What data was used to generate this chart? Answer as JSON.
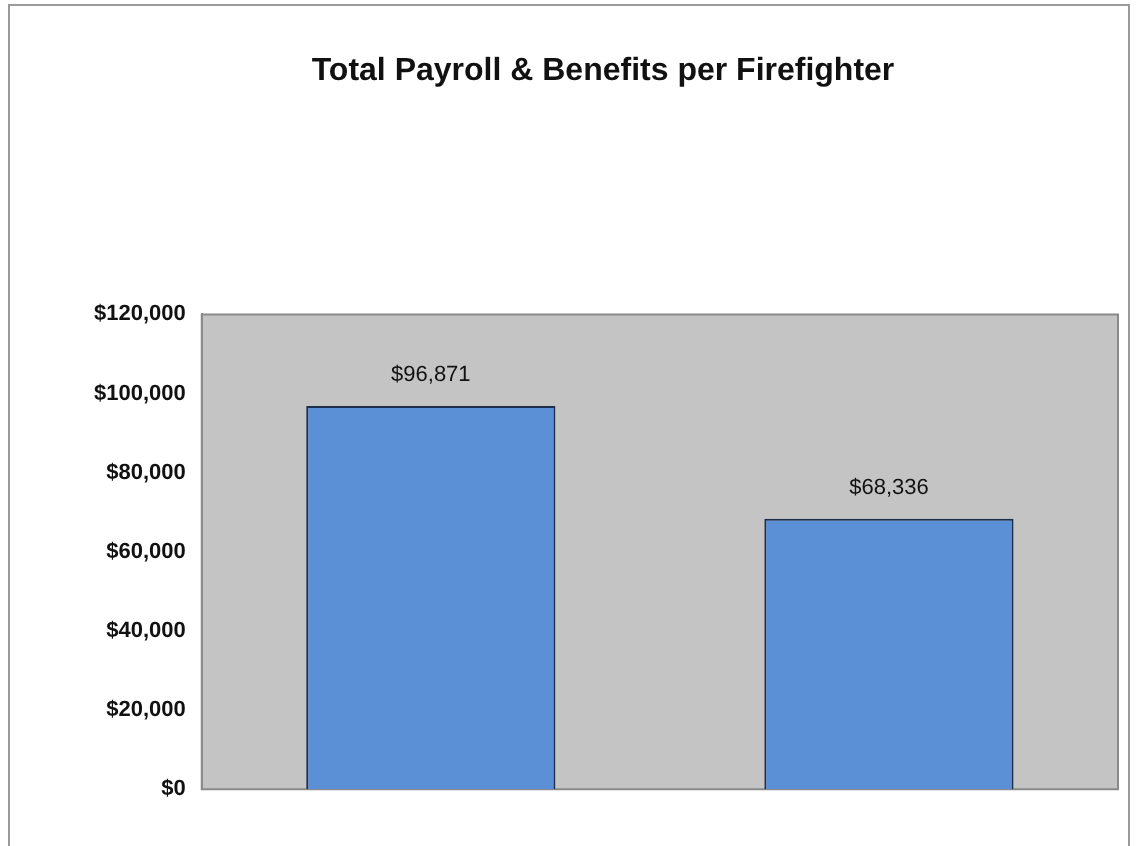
{
  "chart_data": {
    "type": "bar",
    "title": "Total Payroll & Benefits per Firefighter",
    "categories": [
      null,
      null
    ],
    "values": [
      96871,
      68336
    ],
    "value_labels": [
      "$96,871",
      "$68,336"
    ],
    "color": "#5b8fd6",
    "ylim": [
      0,
      120000
    ],
    "yticks": [
      {
        "value": 0,
        "label": "$0"
      },
      {
        "value": 20000,
        "label": "$20,000"
      },
      {
        "value": 40000,
        "label": "$40,000"
      },
      {
        "value": 60000,
        "label": "$60,000"
      },
      {
        "value": 80000,
        "label": "$80,000"
      },
      {
        "value": 100000,
        "label": "$100,000"
      },
      {
        "value": 120000,
        "label": "$120,000"
      }
    ],
    "grid": false,
    "legend": false
  }
}
